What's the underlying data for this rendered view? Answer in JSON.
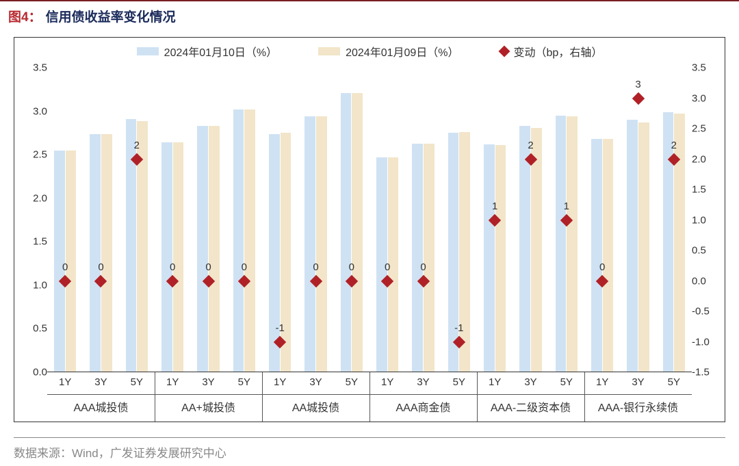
{
  "figure": {
    "label": "图4：",
    "title": "信用债收益率变化情况",
    "source": "数据来源：Wind，广发证券发展研究中心"
  },
  "legend": {
    "series1": {
      "label": "2024年01月10日（%）",
      "color": "#cfe2f3"
    },
    "series2": {
      "label": "2024年01月09日（%）",
      "color": "#f2e5c9"
    },
    "series3": {
      "label": "变动（bp，右轴）",
      "color": "#b02127"
    }
  },
  "chart": {
    "y_left": {
      "min": 0.0,
      "max": 3.5,
      "step": 0.5
    },
    "y_right": {
      "min": -1.5,
      "max": 3.5,
      "step": 0.5
    },
    "bar_colors": [
      "#cfe2f3",
      "#f2e5c9"
    ],
    "diamond_color": "#b02127",
    "border_color": "#333333",
    "groups": [
      {
        "name": "AAA城投债",
        "subs": [
          "1Y",
          "3Y",
          "5Y"
        ],
        "s1": [
          2.55,
          2.74,
          2.91
        ],
        "s2": [
          2.55,
          2.74,
          2.89
        ],
        "bp": [
          0,
          0,
          2
        ],
        "bp_label": [
          "0",
          "0",
          "2"
        ]
      },
      {
        "name": "AA+城投债",
        "subs": [
          "1Y",
          "3Y",
          "5Y"
        ],
        "s1": [
          2.64,
          2.83,
          3.02
        ],
        "s2": [
          2.64,
          2.83,
          3.02
        ],
        "bp": [
          0,
          0,
          0
        ],
        "bp_label": [
          "0",
          "0",
          "0"
        ]
      },
      {
        "name": "AA城投债",
        "subs": [
          "1Y",
          "3Y",
          "5Y"
        ],
        "s1": [
          2.74,
          2.94,
          3.21
        ],
        "s2": [
          2.75,
          2.94,
          3.21
        ],
        "bp": [
          -1,
          0,
          0
        ],
        "bp_label": [
          "-1",
          "0",
          "0"
        ]
      },
      {
        "name": "AAA商金债",
        "subs": [
          "1Y",
          "3Y",
          "5Y"
        ],
        "s1": [
          2.47,
          2.63,
          2.75
        ],
        "s2": [
          2.47,
          2.63,
          2.76
        ],
        "bp": [
          0,
          0,
          -1
        ],
        "bp_label": [
          "0",
          "0",
          "-1"
        ]
      },
      {
        "name": "AAA-二级资本债",
        "subs": [
          "1Y",
          "3Y",
          "5Y"
        ],
        "s1": [
          2.62,
          2.83,
          2.95
        ],
        "s2": [
          2.61,
          2.81,
          2.94
        ],
        "bp": [
          1,
          2,
          1
        ],
        "bp_label": [
          "1",
          "2",
          "1"
        ]
      },
      {
        "name": "AAA-银行永续债",
        "subs": [
          "1Y",
          "3Y",
          "5Y"
        ],
        "s1": [
          2.68,
          2.9,
          2.99
        ],
        "s2": [
          2.68,
          2.87,
          2.97
        ],
        "bp": [
          0,
          3,
          2
        ],
        "bp_label": [
          "0",
          "3",
          "2"
        ]
      }
    ]
  }
}
